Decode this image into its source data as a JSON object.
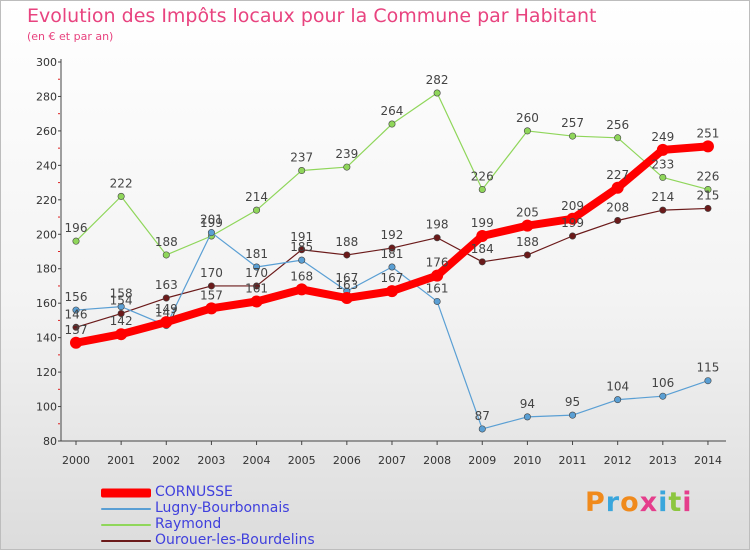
{
  "header": {
    "title": "Evolution des Impôts locaux pour la Commune par Habitant",
    "subtitle": "(en € et par an)"
  },
  "brand": {
    "letters": [
      "P",
      "r",
      "o",
      "x",
      "i",
      "t",
      "i"
    ],
    "colors": [
      "#f08a1c",
      "#3aa6dc",
      "#f08a1c",
      "#e53d8c",
      "#3aa6dc",
      "#8cc63f",
      "#e53d8c"
    ]
  },
  "chart_data": {
    "type": "line",
    "title": "Evolution des Impôts locaux pour la Commune par Habitant",
    "subtitle": "(en € et par an)",
    "xlabel": "",
    "ylabel": "",
    "x": [
      "2000",
      "2001",
      "2002",
      "2003",
      "2004",
      "2005",
      "2006",
      "2007",
      "2008",
      "2009",
      "2010",
      "2011",
      "2012",
      "2013",
      "2014"
    ],
    "ylim": [
      80,
      300
    ],
    "yticks": [
      80,
      100,
      120,
      140,
      160,
      180,
      200,
      220,
      240,
      260,
      280,
      300
    ],
    "grid": false,
    "legend_position": "bottom-left",
    "series": [
      {
        "name": "CORNUSSE",
        "color": "#ff0000",
        "values": [
          137,
          142,
          149,
          157,
          161,
          168,
          163,
          167,
          176,
          199,
          205,
          209,
          227,
          249,
          251
        ]
      },
      {
        "name": "Lugny-Bourbonnais",
        "color": "#5a9fd4",
        "values": [
          156,
          158,
          147,
          201,
          181,
          185,
          167,
          181,
          161,
          87,
          94,
          95,
          104,
          106,
          115
        ]
      },
      {
        "name": "Raymond",
        "color": "#8fd65a",
        "values": [
          196,
          222,
          188,
          199,
          214,
          237,
          239,
          264,
          282,
          226,
          260,
          257,
          256,
          233,
          226
        ]
      },
      {
        "name": "Ourouer-les-Bourdelins",
        "color": "#6b1a1a",
        "values": [
          146,
          154,
          163,
          170,
          170,
          191,
          188,
          192,
          198,
          184,
          188,
          199,
          208,
          214,
          215
        ]
      }
    ]
  }
}
